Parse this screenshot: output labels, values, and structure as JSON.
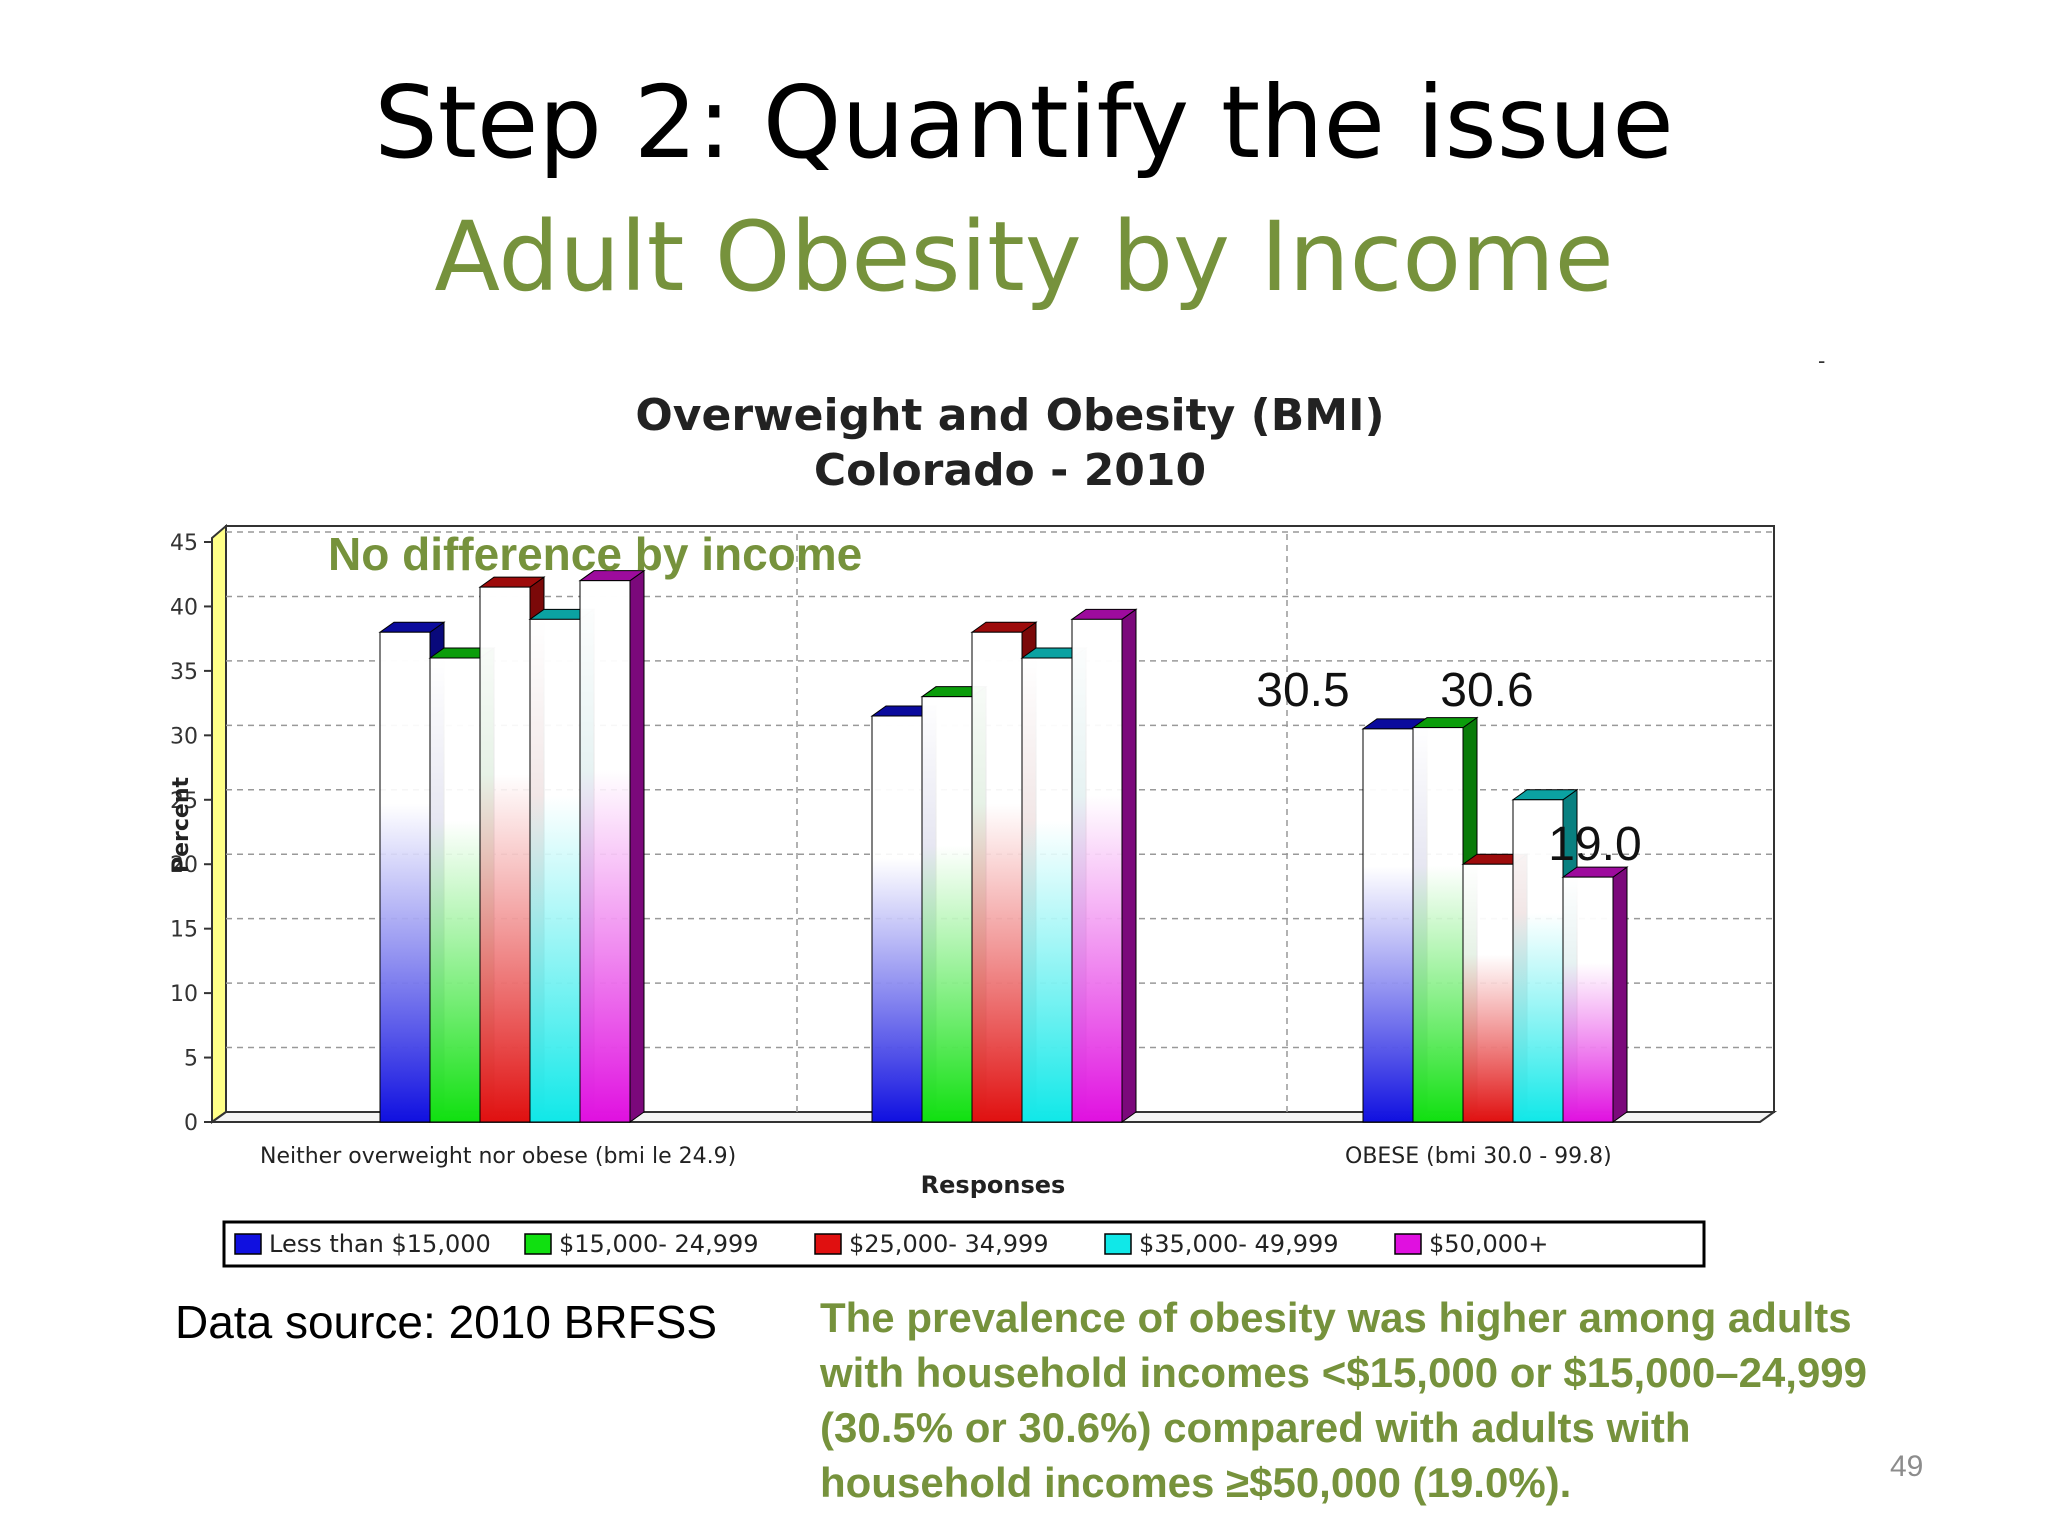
{
  "slide": {
    "title": "Step 2: Quantify the issue",
    "subtitle": "Adult Obesity by Income",
    "dash_mark": "-",
    "source": "Data source: 2010 BRFSS",
    "summary": "The prevalence of obesity was higher among adults with household incomes <$15,000 or $15,000–24,999 (30.5% or 30.6%) compared with adults with household incomes ≥$50,000 (19.0%).",
    "page_number": "49"
  },
  "chart_data": {
    "type": "bar",
    "title": "Overweight and Obesity (BMI)",
    "subtitle": "Colorado - 2010",
    "ylabel": "Percent",
    "xlabel": "Responses",
    "ylim": [
      0,
      45
    ],
    "yticks": [
      0,
      5,
      10,
      15,
      20,
      25,
      30,
      35,
      40,
      45
    ],
    "grid": true,
    "legend_position": "bottom",
    "categories": [
      "Neither overweight nor obese (bmi le 24.9)",
      "",
      "OBESE (bmi 30.0 - 99.8)"
    ],
    "series": [
      {
        "name": "Less than $15,000",
        "color": "#1010e0",
        "values": [
          38,
          31.5,
          30.5
        ]
      },
      {
        "name": "$15,000- 24,999",
        "color": "#10e010",
        "values": [
          36,
          33,
          30.6
        ]
      },
      {
        "name": "$25,000- 34,999",
        "color": "#e01010",
        "values": [
          41.5,
          38,
          20
        ]
      },
      {
        "name": "$35,000- 49,999",
        "color": "#10e8e8",
        "values": [
          39,
          36,
          25
        ]
      },
      {
        "name": "$50,000+",
        "color": "#e010e0",
        "values": [
          42,
          39,
          19.0
        ]
      }
    ],
    "annotations": [
      {
        "text": "No difference by income"
      },
      {
        "text": "30.5"
      },
      {
        "text": "30.6"
      },
      {
        "text": "19.0"
      }
    ]
  }
}
